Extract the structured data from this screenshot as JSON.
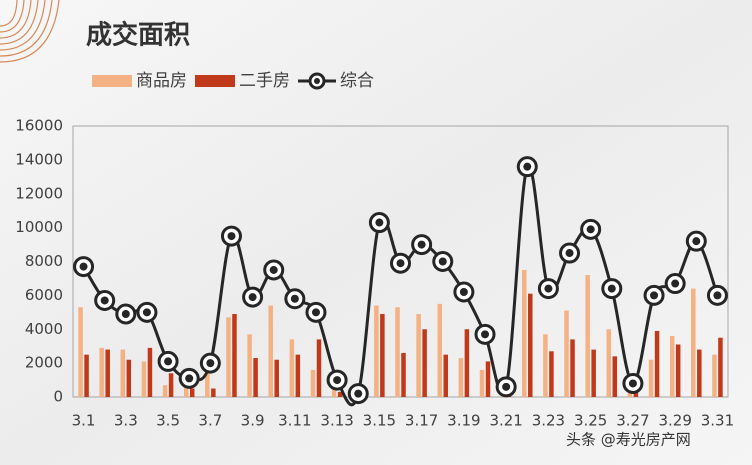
{
  "chart_data": {
    "type": "bar",
    "title": "成交面积",
    "categories": [
      "3.1",
      null,
      "3.3",
      null,
      "3.5",
      null,
      "3.7",
      null,
      "3.9",
      null,
      "3.11",
      null,
      "3.13",
      null,
      "3.15",
      null,
      "3.17",
      null,
      "3.19",
      null,
      "3.21",
      null,
      "3.23",
      null,
      "3.25",
      null,
      "3.27",
      null,
      "3.29",
      null,
      "3.31"
    ],
    "series": [
      {
        "name": "商品房",
        "color": "#f4b183",
        "values": [
          5300,
          2900,
          2800,
          2100,
          700,
          600,
          1500,
          4700,
          3700,
          5400,
          3400,
          1600,
          700,
          100,
          5400,
          5300,
          4900,
          5500,
          2300,
          1600,
          300,
          7500,
          3700,
          5100,
          7200,
          4000,
          400,
          2200,
          3600,
          6400,
          2500
        ]
      },
      {
        "name": "二手房",
        "color": "#c0391b",
        "values": [
          2500,
          2800,
          2200,
          2900,
          1400,
          500,
          500,
          4900,
          2300,
          2200,
          2500,
          3400,
          300,
          100,
          4900,
          2600,
          4000,
          2500,
          4000,
          2100,
          300,
          6100,
          2700,
          3400,
          2800,
          2400,
          400,
          3900,
          3100,
          2800,
          3500
        ]
      },
      {
        "name": "综合",
        "color": "#262626",
        "type": "line",
        "values": [
          7700,
          5700,
          4900,
          5000,
          2100,
          1100,
          2000,
          9500,
          5900,
          7500,
          5800,
          5000,
          1000,
          200,
          10300,
          7900,
          9000,
          8000,
          6200,
          3700,
          600,
          13600,
          6400,
          8500,
          9900,
          6400,
          800,
          6000,
          6700,
          9200,
          6000
        ]
      }
    ],
    "ylim": [
      0,
      16000
    ],
    "yticks": [
      0,
      2000,
      4000,
      6000,
      8000,
      10000,
      12000,
      14000,
      16000
    ],
    "grid": false,
    "watermark": "头条 @寿光房产网"
  }
}
